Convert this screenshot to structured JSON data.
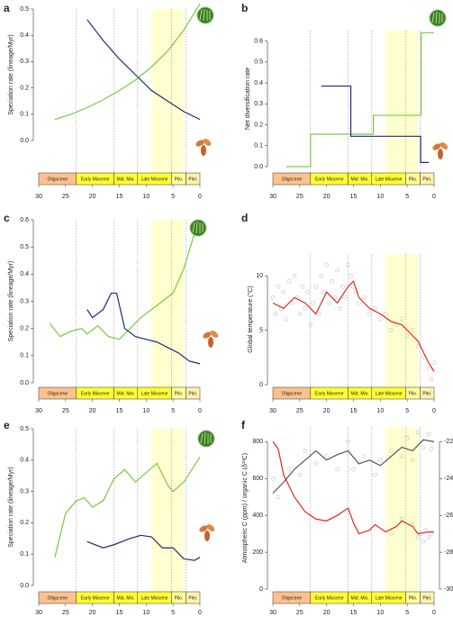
{
  "timescale": {
    "epochs": [
      {
        "name": "Oligocene",
        "start": 33.9,
        "end": 23,
        "color": "#fdc28c"
      },
      {
        "name": "Early Miocene",
        "start": 23,
        "end": 16,
        "color": "#ffff33"
      },
      {
        "name": "Mid. Mio.",
        "start": 16,
        "end": 11.6,
        "color": "#ffff33"
      },
      {
        "name": "Late Miocene",
        "start": 11.6,
        "end": 5.3,
        "color": "#ffff33"
      },
      {
        "name": "Plio.",
        "start": 5.3,
        "end": 2.6,
        "color": "#ffff99"
      },
      {
        "name": "Plei.",
        "start": 2.6,
        "end": 0,
        "color": "#fff2ae"
      }
    ]
  },
  "highlight": [
    9,
    3
  ],
  "chart_data": [
    {
      "type": "line",
      "label": "a",
      "ylabel": "Speciation rate (lineage/Myr)",
      "xlim": [
        30,
        0
      ],
      "xticks": [
        30,
        25,
        20,
        15,
        10,
        5,
        0
      ],
      "ylim": [
        0,
        0.5
      ],
      "yticks": [
        {
          "value": 0,
          "label": "0.0"
        },
        0.1,
        0.2,
        0.3,
        0.4,
        0.5
      ],
      "series": [
        {
          "color": "#7ac943",
          "x": [
            27,
            24,
            21,
            18,
            15,
            12,
            9,
            6,
            3,
            0
          ],
          "values": [
            0.08,
            0.1,
            0.125,
            0.155,
            0.19,
            0.23,
            0.28,
            0.34,
            0.42,
            0.52
          ]
        },
        {
          "color": "#1f2a7a",
          "x": [
            21,
            18,
            15,
            12,
            9,
            6,
            3,
            0
          ],
          "values": [
            0.46,
            0.38,
            0.31,
            0.25,
            0.19,
            0.15,
            0.11,
            0.08
          ]
        }
      ]
    },
    {
      "type": "line",
      "label": "b",
      "ylabel": "Net diversification rate",
      "xlim": [
        30,
        0
      ],
      "xticks": [
        30,
        25,
        20,
        15,
        10,
        5,
        0
      ],
      "ylim": [
        0,
        0.65
      ],
      "yticks": [
        {
          "value": 0,
          "label": "0.0"
        },
        0.1,
        0.2,
        0.3,
        0.4,
        0.5,
        0.6
      ],
      "series": [
        {
          "color": "#7ac943",
          "x": [
            27.5,
            23,
            23,
            11.3,
            11.3,
            2.4,
            2.4,
            0
          ],
          "values": [
            0,
            0,
            0.155,
            0.155,
            0.245,
            0.245,
            0.64,
            0.64
          ]
        },
        {
          "color": "#1f2a7a",
          "x": [
            21,
            15.5,
            15.5,
            2.5,
            2.5,
            1
          ],
          "values": [
            0.385,
            0.385,
            0.145,
            0.145,
            0.02,
            0.02
          ]
        }
      ]
    },
    {
      "type": "line",
      "label": "c",
      "ylabel": "Speciation rate (lineage/Myr)",
      "xlim": [
        30,
        0
      ],
      "xticks": [
        30,
        25,
        20,
        15,
        10,
        5,
        0
      ],
      "ylim": [
        0,
        0.6
      ],
      "yticks": [
        {
          "value": 0,
          "label": "0.0"
        },
        0.1,
        0.2,
        0.3,
        0.4,
        0.5,
        0.6
      ],
      "series": [
        {
          "color": "#7ac943",
          "x": [
            28,
            26,
            24,
            22,
            21,
            19,
            17,
            15,
            13,
            11,
            9,
            7,
            5,
            3,
            1,
            0
          ],
          "values": [
            0.22,
            0.17,
            0.19,
            0.2,
            0.18,
            0.21,
            0.17,
            0.16,
            0.2,
            0.24,
            0.27,
            0.3,
            0.33,
            0.42,
            0.55,
            0.6
          ]
        },
        {
          "color": "#1f2a7a",
          "x": [
            21,
            20,
            18,
            16.5,
            15.5,
            14,
            12,
            10,
            8,
            6,
            4,
            2,
            0
          ],
          "values": [
            0.27,
            0.24,
            0.27,
            0.33,
            0.33,
            0.2,
            0.17,
            0.16,
            0.15,
            0.13,
            0.11,
            0.08,
            0.07
          ]
        }
      ]
    },
    {
      "type": "line",
      "label": "d",
      "ylabel": "Global temperature (°C)",
      "xlim": [
        30,
        0
      ],
      "xticks": [
        30,
        25,
        20,
        15,
        10,
        5,
        0
      ],
      "ylim": [
        0,
        12
      ],
      "yticks": [
        0,
        5,
        10
      ],
      "series": [
        {
          "color": "#b0b0b0",
          "mark": "point",
          "x": [
            30,
            29.5,
            29,
            28.5,
            28,
            27.5,
            27,
            26.5,
            26,
            25.5,
            25,
            24.5,
            24,
            23.5,
            23,
            22.5,
            22,
            21.5,
            21,
            20.5,
            20,
            19.5,
            19,
            18.5,
            18,
            17.5,
            17,
            16.5,
            16,
            15.5,
            15,
            14.5,
            14,
            13,
            12,
            11,
            10,
            9,
            8,
            7,
            6,
            5,
            4,
            3,
            2,
            1,
            0.5,
            0
          ],
          "values": [
            8,
            6.5,
            9,
            7,
            8.5,
            6,
            9.5,
            7.5,
            10,
            8,
            6.5,
            9,
            7,
            8.5,
            5.5,
            7.5,
            9,
            6.5,
            10,
            8.5,
            11,
            7.5,
            9.5,
            8,
            10.5,
            7,
            9,
            8,
            11,
            10,
            9,
            8.5,
            7.5,
            8,
            6.5,
            7,
            6,
            6.5,
            5,
            5.5,
            6,
            4.5,
            5,
            3.5,
            2.5,
            1.5,
            0.5,
            2
          ]
        },
        {
          "color": "#e8261c",
          "x": [
            30,
            28,
            26,
            24,
            22,
            20,
            18,
            16,
            15,
            14,
            12,
            10,
            8,
            6,
            4,
            3,
            2,
            1,
            0
          ],
          "values": [
            7.5,
            7,
            8,
            7.5,
            6.5,
            8.5,
            7.5,
            9,
            9.5,
            8,
            7,
            6.5,
            5.8,
            5.5,
            4.5,
            4,
            3,
            2,
            1.2
          ]
        }
      ]
    },
    {
      "type": "line",
      "label": "e",
      "ylabel": "Speciation rate (lineage/Myr)",
      "xlim": [
        30,
        0
      ],
      "xticks": [
        30,
        25,
        20,
        15,
        10,
        5,
        0
      ],
      "ylim": [
        0,
        0.5
      ],
      "yticks": [
        {
          "value": 0,
          "label": "0.0"
        },
        0.1,
        0.2,
        0.3,
        0.4,
        0.5
      ],
      "series": [
        {
          "color": "#7ac943",
          "x": [
            27,
            25,
            23,
            21.5,
            20,
            18,
            16,
            14,
            12,
            10,
            8,
            6,
            5,
            3,
            0
          ],
          "values": [
            0.09,
            0.23,
            0.27,
            0.28,
            0.25,
            0.27,
            0.34,
            0.37,
            0.33,
            0.36,
            0.39,
            0.32,
            0.3,
            0.33,
            0.41
          ]
        },
        {
          "color": "#1f2a7a",
          "x": [
            21,
            18,
            16,
            13,
            11,
            9,
            7,
            5,
            3,
            1,
            0
          ],
          "values": [
            0.14,
            0.12,
            0.13,
            0.15,
            0.16,
            0.155,
            0.12,
            0.12,
            0.085,
            0.08,
            0.09
          ]
        }
      ]
    },
    {
      "type": "line",
      "label": "f",
      "ylabel": "Atmospheric C (ppm) / organic C (δ¹³C)",
      "xlim": [
        30,
        0
      ],
      "xticks": [
        30,
        25,
        20,
        15,
        10,
        5,
        0
      ],
      "ylim": [
        0,
        880
      ],
      "yticks": [
        0,
        200,
        400,
        600,
        800
      ],
      "y2lim": [
        -30,
        -21.2
      ],
      "y2ticks": [
        -30,
        -28,
        -26,
        -24,
        -22
      ],
      "series": [
        {
          "color": "#b0b0b0",
          "mark": "point",
          "x": [
            8,
            6,
            4,
            3,
            2.5,
            2,
            1.5,
            1,
            0.5
          ],
          "values": [
            300,
            380,
            350,
            280,
            300,
            260,
            320,
            280,
            300
          ]
        },
        {
          "color": "#b0b0b0",
          "mark": "point",
          "axis": "y2",
          "x": [
            30,
            29,
            27,
            25,
            24,
            22,
            20,
            18,
            16,
            15,
            13,
            11,
            10,
            8,
            6,
            5,
            4,
            3,
            2,
            1,
            0.5
          ],
          "values": [
            -24,
            -25,
            -23.5,
            -23.8,
            -22.5,
            -23.2,
            -22.8,
            -23.5,
            -22,
            -23.5,
            -22.8,
            -23.8,
            -23,
            -22.5,
            -22.8,
            -21.8,
            -23,
            -21.5,
            -22.3,
            -21.6,
            -22.4
          ]
        },
        {
          "color": "#e8261c",
          "x": [
            30,
            29,
            28,
            26,
            24,
            22,
            20,
            18,
            16,
            15,
            14,
            12,
            11,
            9,
            7,
            6,
            4,
            3,
            1,
            0
          ],
          "values": [
            800,
            760,
            620,
            500,
            420,
            380,
            370,
            400,
            440,
            360,
            300,
            320,
            350,
            310,
            340,
            370,
            340,
            300,
            310,
            310
          ]
        },
        {
          "color": "#555555",
          "axis": "y2",
          "x": [
            30,
            28,
            26,
            24,
            22,
            20,
            18,
            16,
            14,
            12,
            10,
            8,
            6,
            4,
            2,
            0
          ],
          "values": [
            -24.8,
            -24.2,
            -23.5,
            -23,
            -22.5,
            -23,
            -22.7,
            -22.5,
            -23.2,
            -23,
            -23.3,
            -22.8,
            -22.3,
            -22.5,
            -21.9,
            -22
          ]
        }
      ]
    }
  ]
}
